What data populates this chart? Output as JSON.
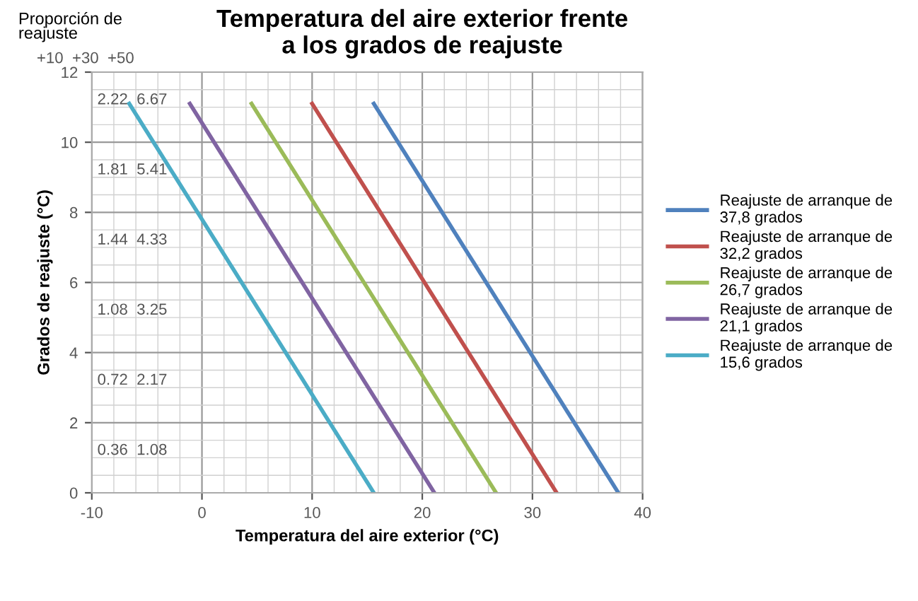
{
  "chart_data": {
    "type": "line",
    "title": "Temperatura del aire exterior frente\na los grados de reajuste",
    "xlabel": "Temperatura del aire exterior (°C)",
    "ylabel": "Grados de reajuste (°C)",
    "xlim": [
      -10,
      40
    ],
    "xticks": [
      -10,
      0,
      10,
      20,
      30,
      40
    ],
    "ylim": [
      0,
      12
    ],
    "yticks": [
      0,
      2,
      4,
      6,
      8,
      10,
      12
    ],
    "grid": true,
    "legend": "right",
    "marker": "none",
    "line_style": "solid",
    "series": [
      {
        "name": "Reajuste de arranque de\n37,8 grados",
        "color": "#4f81bd",
        "x": [
          37.8,
          15.6
        ],
        "values": [
          0,
          11.1
        ]
      },
      {
        "name": "Reajuste de arranque de\n32,2 grados",
        "color": "#c0504d",
        "x": [
          32.2,
          10.0
        ],
        "values": [
          0,
          11.1
        ]
      },
      {
        "name": "Reajuste de arranque de\n26,7 grados",
        "color": "#9bbb59",
        "x": [
          26.7,
          4.5
        ],
        "values": [
          0,
          11.1
        ]
      },
      {
        "name": "Reajuste de arranque de\n21,1 grados",
        "color": "#8064a2",
        "x": [
          21.1,
          -1.1
        ],
        "values": [
          0,
          11.1
        ]
      },
      {
        "name": "Reajuste de arranque de\n15,6 grados",
        "color": "#4bacc6",
        "x": [
          15.6,
          -6.6
        ],
        "values": [
          0,
          11.1
        ]
      }
    ],
    "annotations": [
      "Proporción de\nreajuste",
      "+10  +30  +50",
      "2.22  6.67",
      "1.81  5.41",
      "1.44  4.33",
      "1.08  3.25",
      "0.72  2.17",
      "0.36  1.08"
    ]
  }
}
